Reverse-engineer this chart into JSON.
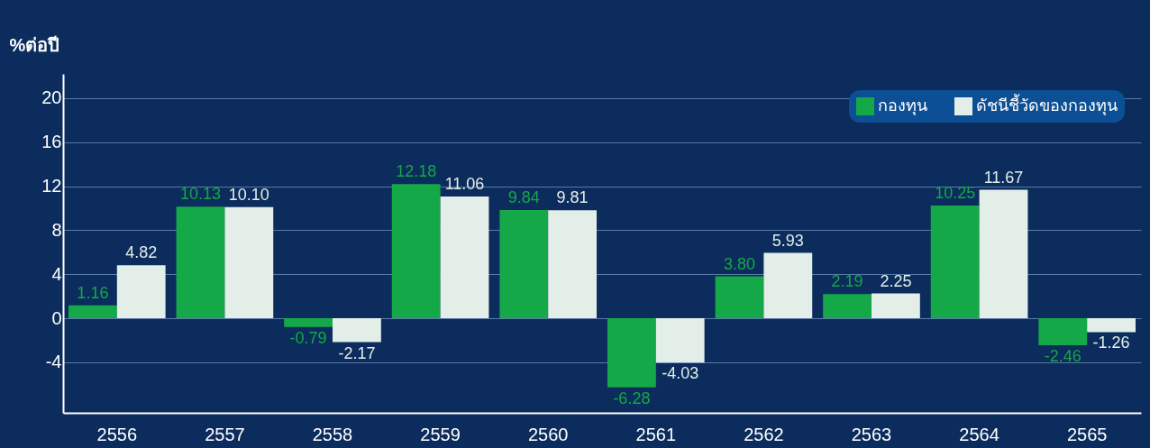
{
  "chart_data": {
    "type": "bar",
    "ylabel": "%ต่อปี",
    "categories": [
      "2556",
      "2557",
      "2558",
      "2559",
      "2560",
      "2561",
      "2562",
      "2563",
      "2564",
      "2565"
    ],
    "series": [
      {
        "name": "กองทุน",
        "color": "#14a848",
        "values": [
          1.16,
          10.13,
          -0.79,
          12.18,
          9.84,
          -6.28,
          3.8,
          2.19,
          10.25,
          -2.46
        ],
        "value_labels": [
          "1.16",
          "10.13",
          "-0.79",
          "12.18",
          "9.84",
          "-6.28",
          "3.80",
          "2.19",
          "10.25",
          "-2.46"
        ]
      },
      {
        "name": "ดัชนีชี้วัดของกองทุน",
        "color": "#e4eee9",
        "values": [
          4.82,
          10.1,
          -2.17,
          11.06,
          9.81,
          -4.03,
          5.93,
          2.25,
          11.67,
          -1.26
        ],
        "value_labels": [
          "4.82",
          "10.10",
          "-2.17",
          "11.06",
          "9.81",
          "-4.03",
          "5.93",
          "2.25",
          "11.67",
          "-1.26"
        ]
      }
    ],
    "ylim": [
      -8.6,
      22.2
    ],
    "yticks": [
      -4,
      0,
      4,
      8,
      12,
      16,
      20
    ],
    "grid": "y",
    "legend": "top right"
  }
}
